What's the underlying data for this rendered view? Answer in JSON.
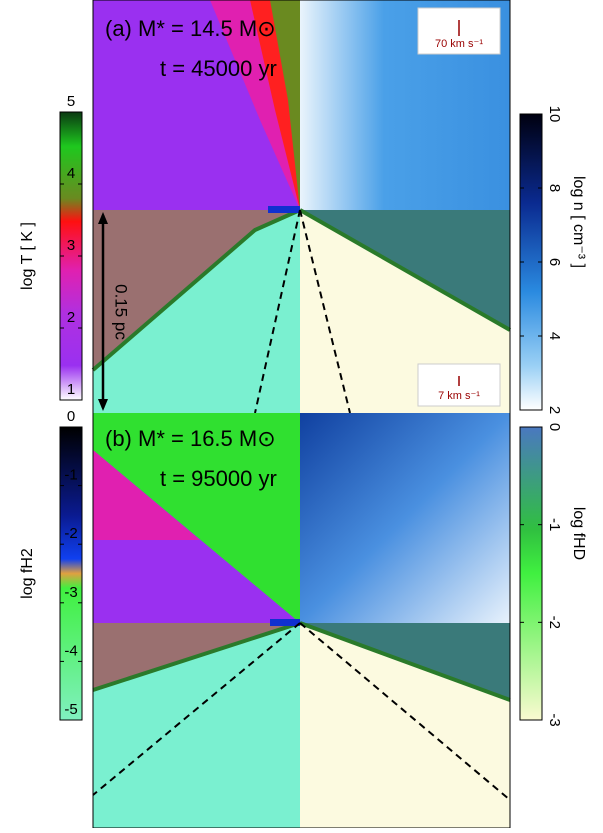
{
  "panels": [
    {
      "label": "(a) M* = 14.5 M⊙",
      "time": "t = 45000 yr",
      "velocity_scales": [
        "70 km s⁻¹",
        "7 km s⁻¹"
      ]
    },
    {
      "label": "(b) M* = 16.5 M⊙",
      "time": "t = 95000 yr"
    }
  ],
  "scale_bar": "0.15 pc",
  "colorbars": [
    {
      "label": "log T  [ K ]",
      "lim": [
        1,
        5
      ],
      "ticks": [
        1,
        2,
        3,
        4,
        5
      ]
    },
    {
      "label": "log n  [ cm⁻³ ]",
      "lim": [
        2,
        10
      ],
      "ticks": [
        2,
        4,
        6,
        8,
        10
      ]
    },
    {
      "label": "log fH2",
      "lim": [
        -5,
        0
      ],
      "ticks": [
        -5,
        -4,
        -3,
        -2,
        -1,
        0
      ]
    },
    {
      "label": "log fHD",
      "lim": [
        -3,
        0
      ],
      "ticks": [
        -3,
        -2,
        -1,
        0
      ]
    }
  ]
}
